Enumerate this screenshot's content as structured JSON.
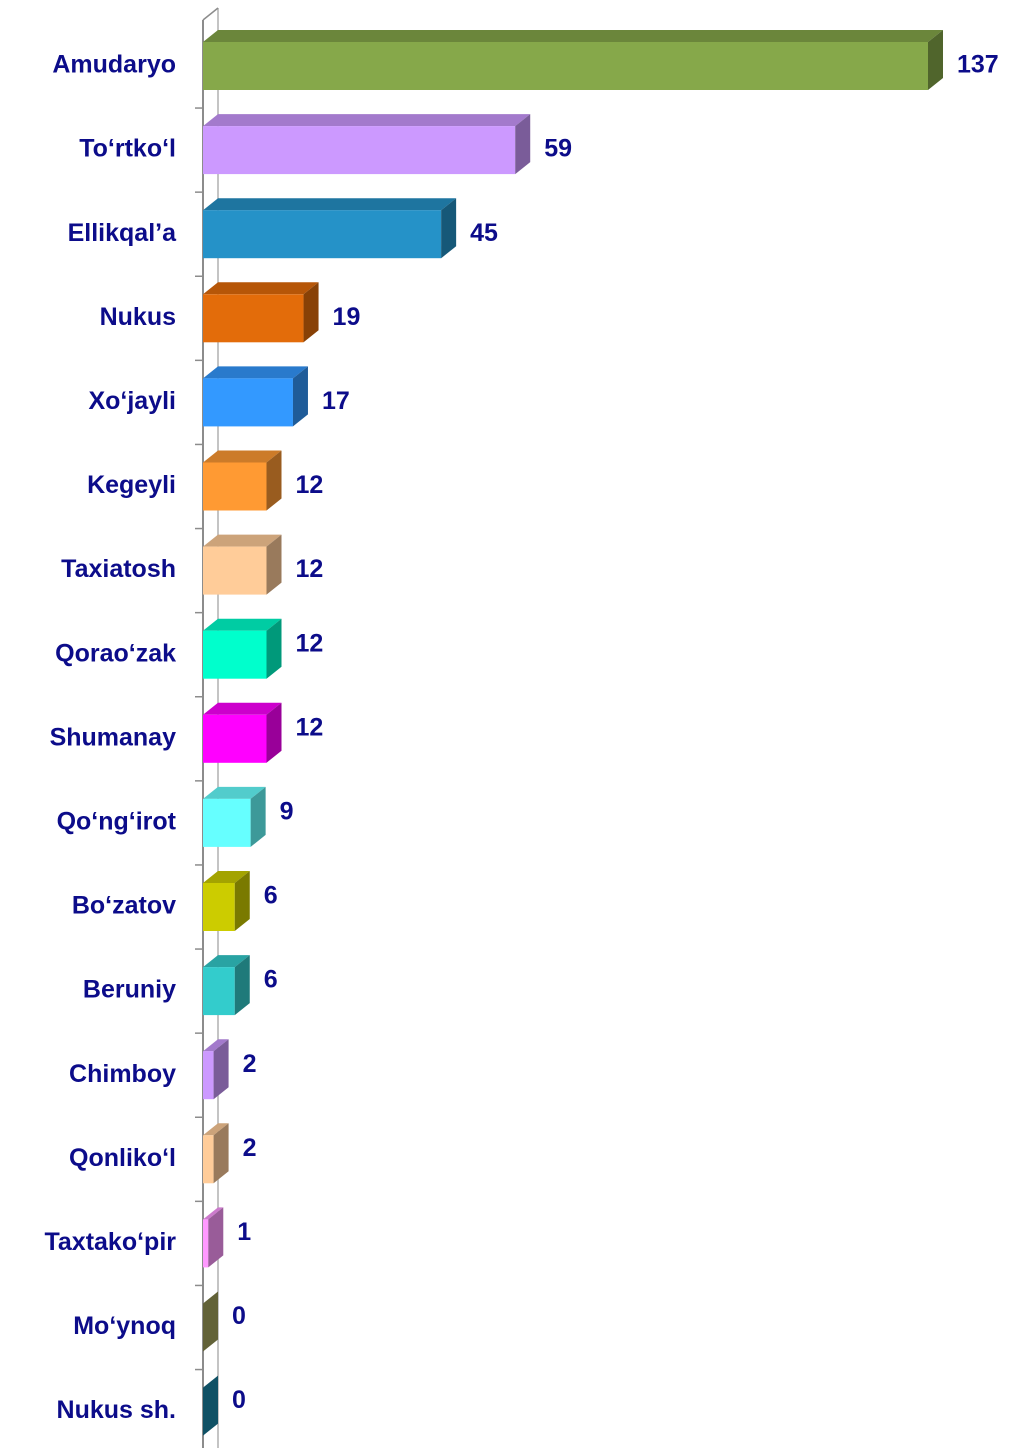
{
  "chart_data": {
    "type": "bar3d_horizontal",
    "categories": [
      "Amudaryo",
      "To‘rtko‘l",
      "Ellikqal’a",
      "Nukus",
      "Xo‘jayli",
      "Kegeyli",
      "Taxiatosh",
      "Qorao‘zak",
      "Shumanay",
      "Qo‘ng‘irot",
      "Bo‘zatov",
      "Beruniy",
      "Chimboy",
      "Qonliko‘l",
      "Taxtako‘pir",
      "Mo‘ynoq",
      "Nukus sh."
    ],
    "values": [
      137,
      59,
      45,
      19,
      17,
      12,
      12,
      12,
      12,
      9,
      6,
      6,
      2,
      2,
      1,
      0,
      0
    ],
    "colors": [
      "#86a84a",
      "#cc99ff",
      "#2592c8",
      "#e36c0a",
      "#3399ff",
      "#ff9a33",
      "#ffcc99",
      "#00ffcc",
      "#ff00ff",
      "#66ffff",
      "#cccc00",
      "#33cccc",
      "#cc99ff",
      "#ffcc99",
      "#ff99ff",
      "#a3a35e",
      "#1a87a8"
    ]
  }
}
